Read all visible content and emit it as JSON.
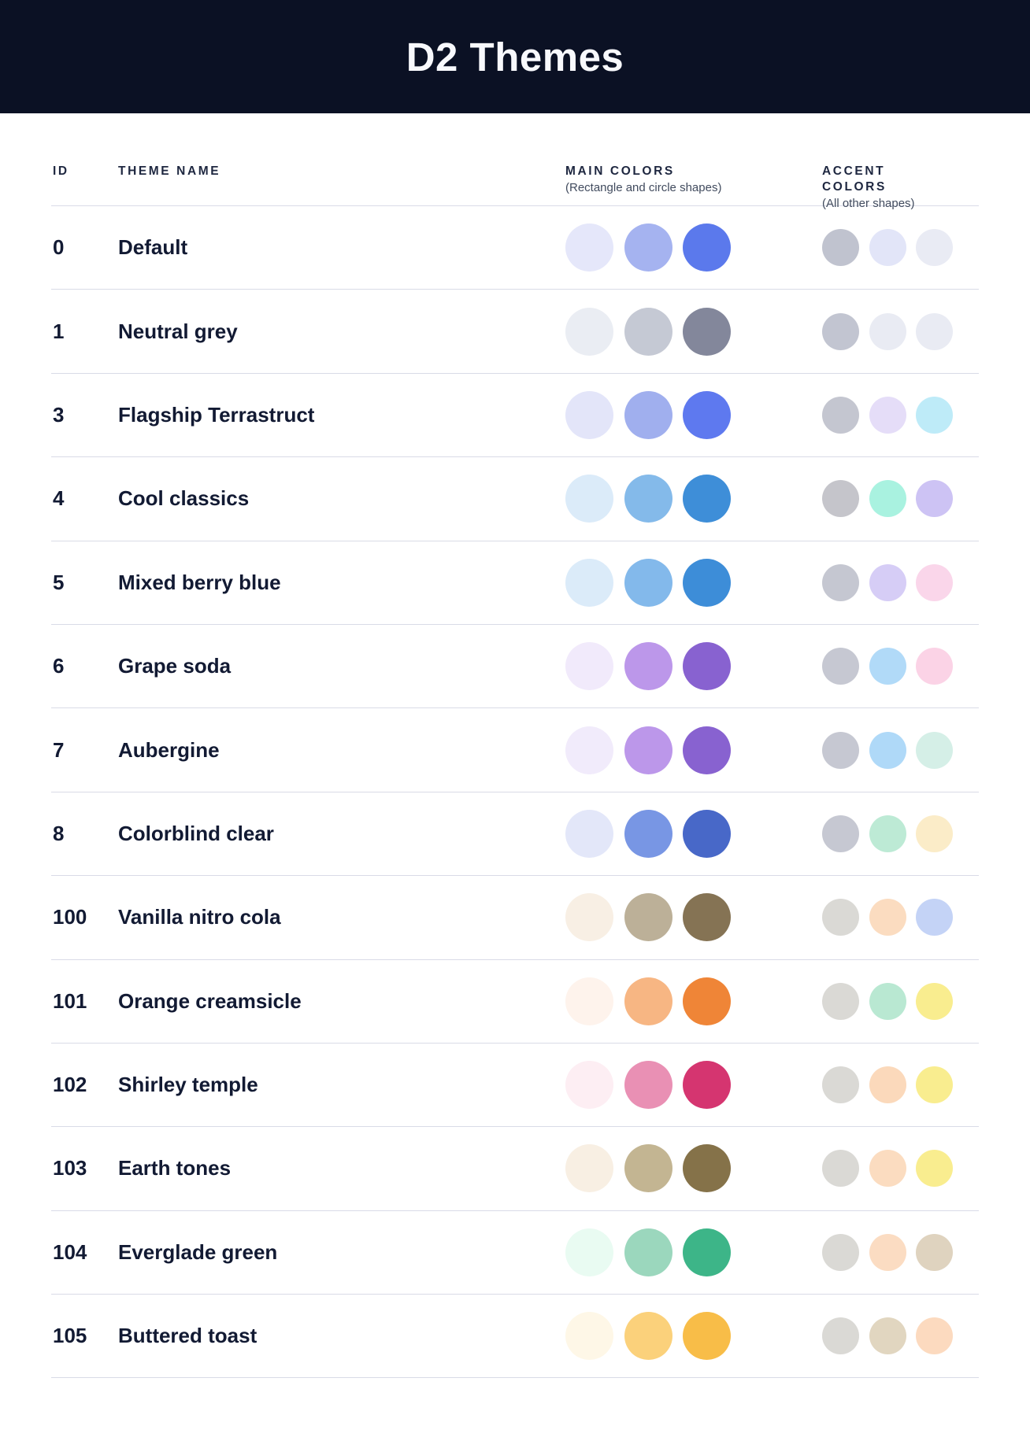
{
  "header": {
    "title": "D2 Themes"
  },
  "columns": {
    "id_label": "ID",
    "name_label": "THEME NAME",
    "main": {
      "label": "MAIN COLORS",
      "subtitle": "(Rectangle and circle shapes)"
    },
    "accent": {
      "label": "ACCENT COLORS",
      "subtitle": "(All other shapes)"
    }
  },
  "colors": {
    "header_bg": "#0B1124",
    "title_text": "#F8F9FD",
    "body_text": "#121A33",
    "divider": "#D9DBE7",
    "subtitle_text": "#414B5E"
  },
  "themes": [
    {
      "id": "0",
      "name": "Default",
      "main_colors": [
        "#E5E7FA",
        "#A5B3F0",
        "#5B79EC"
      ],
      "accent_colors": [
        "#C0C3CF",
        "#E2E5F8",
        "#E9EBF4"
      ]
    },
    {
      "id": "1",
      "name": "Neutral grey",
      "main_colors": [
        "#EAEDF3",
        "#C5C9D4",
        "#83879B"
      ],
      "accent_colors": [
        "#C2C5D1",
        "#E9EBF3",
        "#E9EBF3"
      ]
    },
    {
      "id": "3",
      "name": "Flagship Terrastruct",
      "main_colors": [
        "#E3E5F9",
        "#A0AFEE",
        "#5E79EF"
      ],
      "accent_colors": [
        "#C4C6D0",
        "#E5DDF8",
        "#BEEBF8"
      ]
    },
    {
      "id": "4",
      "name": "Cool classics",
      "main_colors": [
        "#DBEBF9",
        "#84BAEA",
        "#3E8ED8"
      ],
      "accent_colors": [
        "#C5C5CB",
        "#A9F2E0",
        "#CDC3F4"
      ]
    },
    {
      "id": "5",
      "name": "Mixed berry blue",
      "main_colors": [
        "#DBEBF9",
        "#83B9EB",
        "#3D8DD8"
      ],
      "accent_colors": [
        "#C5C7D1",
        "#D6CDF6",
        "#FAD6EA"
      ]
    },
    {
      "id": "6",
      "name": "Grape soda",
      "main_colors": [
        "#F1EAFB",
        "#BC97EA",
        "#8862D0"
      ],
      "accent_colors": [
        "#C6C8D2",
        "#B1DAF8",
        "#FBD3E6"
      ]
    },
    {
      "id": "7",
      "name": "Aubergine",
      "main_colors": [
        "#F1EBFB",
        "#BC97EA",
        "#8862D0"
      ],
      "accent_colors": [
        "#C6C8D2",
        "#AFD9F8",
        "#D5EFE7"
      ]
    },
    {
      "id": "8",
      "name": "Colorblind clear",
      "main_colors": [
        "#E3E7F9",
        "#7896E4",
        "#4868C8"
      ],
      "accent_colors": [
        "#C6C8D2",
        "#BDEAD5",
        "#FBECC8"
      ]
    },
    {
      "id": "100",
      "name": "Vanilla nitro cola",
      "main_colors": [
        "#F8EFE4",
        "#BCB098",
        "#857354"
      ],
      "accent_colors": [
        "#DAD9D5",
        "#FBDCC0",
        "#C4D3F6"
      ]
    },
    {
      "id": "101",
      "name": "Orange creamsicle",
      "main_colors": [
        "#FEF3EC",
        "#F7B683",
        "#EF8537"
      ],
      "accent_colors": [
        "#DAD9D5",
        "#B9E8D2",
        "#F9ED8F"
      ]
    },
    {
      "id": "102",
      "name": "Shirley temple",
      "main_colors": [
        "#FDEEF3",
        "#E990B4",
        "#D53570"
      ],
      "accent_colors": [
        "#DAD9D5",
        "#FBD9BB",
        "#F9ED8F"
      ]
    },
    {
      "id": "103",
      "name": "Earth tones",
      "main_colors": [
        "#F8EFE3",
        "#C3B592",
        "#857249"
      ],
      "accent_colors": [
        "#DAD9D5",
        "#FBDCC0",
        "#F9ED8F"
      ]
    },
    {
      "id": "104",
      "name": "Everglade green",
      "main_colors": [
        "#E9FBF2",
        "#9BD7BD",
        "#3DB588"
      ],
      "accent_colors": [
        "#DAD9D5",
        "#FBDCC2",
        "#DFD3BF"
      ]
    },
    {
      "id": "105",
      "name": "Buttered toast",
      "main_colors": [
        "#FEF7E7",
        "#FBD17B",
        "#F8BD48"
      ],
      "accent_colors": [
        "#DAD9D5",
        "#E1D6C0",
        "#FCDABF"
      ]
    }
  ]
}
